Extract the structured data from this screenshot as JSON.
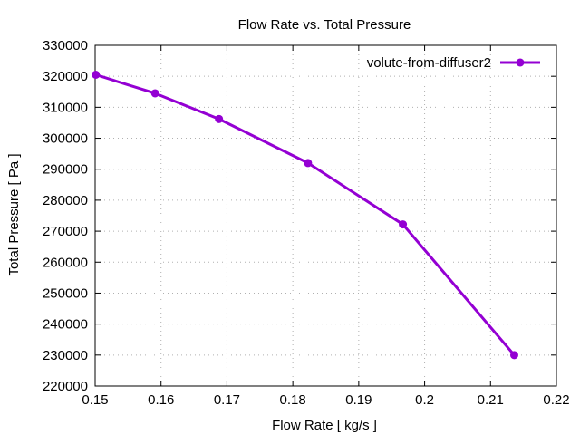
{
  "chart_data": {
    "type": "line",
    "title": "Flow Rate vs. Total Pressure",
    "xlabel": "Flow Rate [ kg/s ]",
    "ylabel": "Total Pressure [ Pa ]",
    "xlim": [
      0.15,
      0.22
    ],
    "ylim": [
      220000,
      330000
    ],
    "x_ticks": [
      0.15,
      0.16,
      0.17,
      0.18,
      0.19,
      0.2,
      0.21,
      0.22
    ],
    "x_tick_labels": [
      "0.15",
      "0.16",
      "0.17",
      "0.18",
      "0.19",
      "0.2",
      "0.21",
      "0.22"
    ],
    "y_ticks": [
      220000,
      230000,
      240000,
      250000,
      260000,
      270000,
      280000,
      290000,
      300000,
      310000,
      320000,
      330000
    ],
    "y_tick_labels": [
      "220000",
      "230000",
      "240000",
      "250000",
      "260000",
      "270000",
      "280000",
      "290000",
      "300000",
      "310000",
      "320000",
      "330000"
    ],
    "grid": true,
    "legend_position": "top-right",
    "series": [
      {
        "name": "volute-from-diffuser2",
        "color": "#9400d3",
        "x": [
          0.1501,
          0.1591,
          0.1688,
          0.1823,
          0.1967,
          0.2136
        ],
        "y": [
          320500,
          314500,
          306200,
          292000,
          272200,
          230000
        ]
      }
    ]
  }
}
